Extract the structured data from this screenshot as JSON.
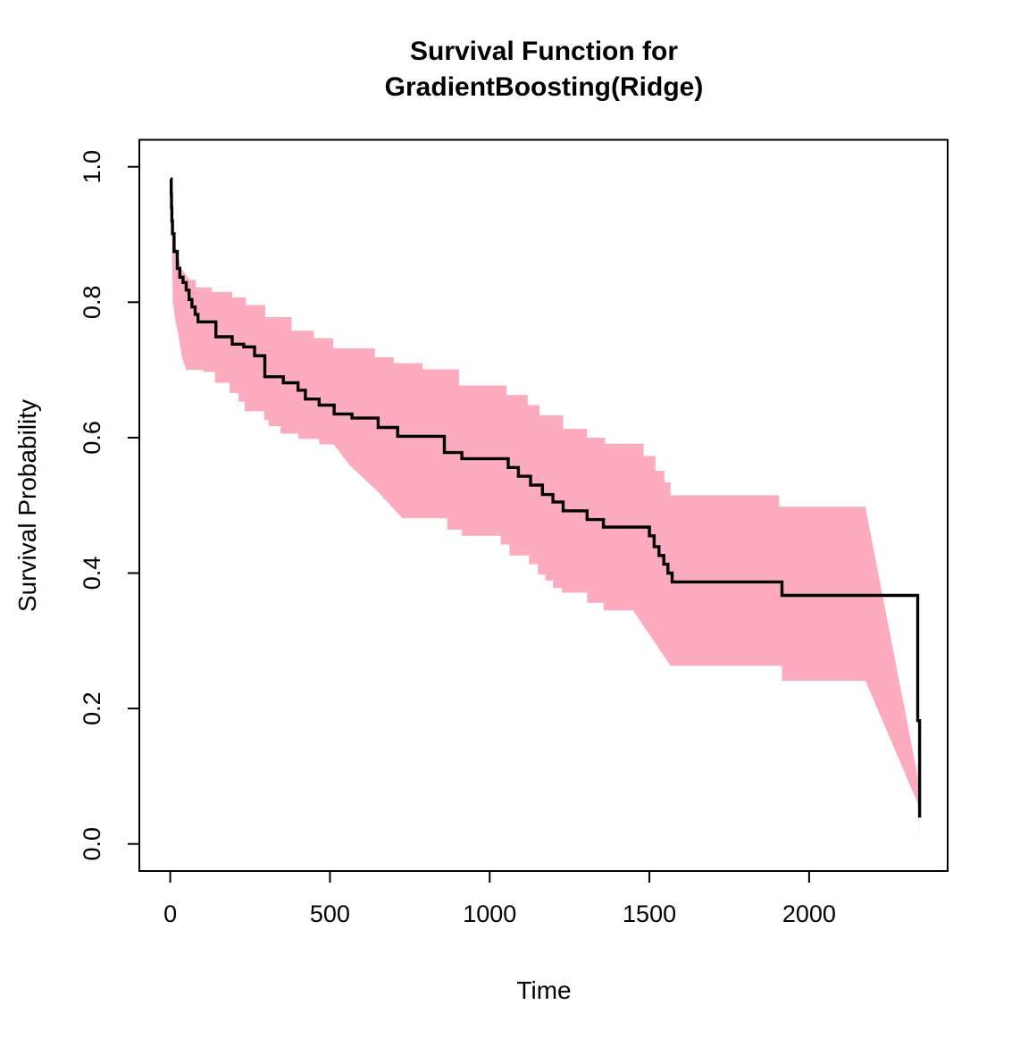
{
  "title": {
    "line1": "Survival Function for",
    "line2": "GradientBoosting(Ridge)"
  },
  "axes": {
    "x_label": "Time",
    "y_label": "Survival Probability",
    "x_tick_labels": [
      "0",
      "500",
      "1000",
      "1500",
      "2000"
    ],
    "x_tick_values": [
      0,
      500,
      1000,
      1500,
      2000
    ],
    "y_tick_labels": [
      "0.0",
      "0.2",
      "0.4",
      "0.6",
      "0.8",
      "1.0"
    ],
    "y_tick_values": [
      0,
      0.2,
      0.4,
      0.6,
      0.8,
      1.0
    ]
  },
  "colors": {
    "curve": "#000000",
    "band": "#FDACC0",
    "axis": "#000000",
    "background": "#FFFFFF"
  },
  "chart_data": {
    "type": "line",
    "subtype": "kaplan-meier-step-with-confidence-band",
    "title": "Survival Function for GradientBoosting(Ridge)",
    "xlabel": "Time",
    "ylabel": "Survival Probability",
    "xlim": [
      0,
      2440
    ],
    "ylim": [
      0.0,
      1.0
    ],
    "grid": false,
    "legend": null,
    "series": [
      {
        "name": "survival_estimate",
        "style": "step-after",
        "color": "#000000",
        "points": [
          [
            1,
            0.982
          ],
          [
            3,
            0.96
          ],
          [
            4,
            0.94
          ],
          [
            5,
            0.92
          ],
          [
            7,
            0.901
          ],
          [
            12,
            0.875
          ],
          [
            22,
            0.85
          ],
          [
            30,
            0.837
          ],
          [
            40,
            0.829
          ],
          [
            50,
            0.818
          ],
          [
            59,
            0.804
          ],
          [
            68,
            0.793
          ],
          [
            78,
            0.782
          ],
          [
            87,
            0.771
          ],
          [
            143,
            0.749
          ],
          [
            194,
            0.738
          ],
          [
            230,
            0.734
          ],
          [
            264,
            0.721
          ],
          [
            296,
            0.69
          ],
          [
            354,
            0.681
          ],
          [
            400,
            0.67
          ],
          [
            423,
            0.657
          ],
          [
            466,
            0.648
          ],
          [
            513,
            0.635
          ],
          [
            569,
            0.629
          ],
          [
            651,
            0.615
          ],
          [
            712,
            0.602
          ],
          [
            858,
            0.578
          ],
          [
            913,
            0.569
          ],
          [
            1058,
            0.556
          ],
          [
            1090,
            0.543
          ],
          [
            1128,
            0.53
          ],
          [
            1165,
            0.516
          ],
          [
            1198,
            0.505
          ],
          [
            1230,
            0.492
          ],
          [
            1305,
            0.479
          ],
          [
            1356,
            0.468
          ],
          [
            1500,
            0.455
          ],
          [
            1515,
            0.439
          ],
          [
            1530,
            0.426
          ],
          [
            1545,
            0.413
          ],
          [
            1558,
            0.4
          ],
          [
            1571,
            0.387
          ],
          [
            1915,
            0.367
          ],
          [
            2340,
            0.182
          ],
          [
            2346,
            0.039
          ]
        ]
      },
      {
        "name": "confidence_band_upper",
        "style": "polyline",
        "color": "#FDACC0",
        "points": [
          [
            5,
            0.9
          ],
          [
            35,
            0.85
          ],
          [
            60,
            0.833
          ],
          [
            80,
            0.833
          ],
          [
            80,
            0.822
          ],
          [
            130,
            0.822
          ],
          [
            130,
            0.815
          ],
          [
            194,
            0.815
          ],
          [
            194,
            0.807
          ],
          [
            236,
            0.807
          ],
          [
            236,
            0.796
          ],
          [
            297,
            0.796
          ],
          [
            297,
            0.778
          ],
          [
            380,
            0.778
          ],
          [
            380,
            0.758
          ],
          [
            450,
            0.758
          ],
          [
            450,
            0.747
          ],
          [
            510,
            0.747
          ],
          [
            510,
            0.732
          ],
          [
            641,
            0.732
          ],
          [
            641,
            0.719
          ],
          [
            700,
            0.719
          ],
          [
            700,
            0.71
          ],
          [
            790,
            0.71
          ],
          [
            790,
            0.701
          ],
          [
            904,
            0.701
          ],
          [
            904,
            0.677
          ],
          [
            1053,
            0.677
          ],
          [
            1053,
            0.663
          ],
          [
            1119,
            0.663
          ],
          [
            1119,
            0.648
          ],
          [
            1156,
            0.648
          ],
          [
            1156,
            0.633
          ],
          [
            1230,
            0.633
          ],
          [
            1230,
            0.613
          ],
          [
            1305,
            0.613
          ],
          [
            1305,
            0.6
          ],
          [
            1361,
            0.6
          ],
          [
            1361,
            0.591
          ],
          [
            1482,
            0.591
          ],
          [
            1482,
            0.573
          ],
          [
            1519,
            0.573
          ],
          [
            1519,
            0.551
          ],
          [
            1547,
            0.551
          ],
          [
            1547,
            0.534
          ],
          [
            1566,
            0.534
          ],
          [
            1566,
            0.515
          ],
          [
            1906,
            0.515
          ],
          [
            1906,
            0.498
          ],
          [
            2176,
            0.498
          ],
          [
            2340,
            0.1
          ],
          [
            2346,
            0.01
          ]
        ]
      },
      {
        "name": "confidence_band_lower",
        "style": "polyline",
        "color": "#FDACC0",
        "points": [
          [
            5,
            0.9
          ],
          [
            8,
            0.8
          ],
          [
            17,
            0.77
          ],
          [
            26,
            0.75
          ],
          [
            36,
            0.72
          ],
          [
            50,
            0.7
          ],
          [
            103,
            0.7
          ],
          [
            103,
            0.697
          ],
          [
            140,
            0.697
          ],
          [
            140,
            0.681
          ],
          [
            186,
            0.681
          ],
          [
            186,
            0.666
          ],
          [
            214,
            0.666
          ],
          [
            214,
            0.653
          ],
          [
            233,
            0.653
          ],
          [
            233,
            0.639
          ],
          [
            294,
            0.639
          ],
          [
            294,
            0.626
          ],
          [
            308,
            0.626
          ],
          [
            308,
            0.617
          ],
          [
            345,
            0.617
          ],
          [
            345,
            0.606
          ],
          [
            401,
            0.606
          ],
          [
            401,
            0.598
          ],
          [
            466,
            0.598
          ],
          [
            466,
            0.59
          ],
          [
            512,
            0.59
          ],
          [
            560,
            0.56
          ],
          [
            650,
            0.52
          ],
          [
            727,
            0.481
          ],
          [
            867,
            0.481
          ],
          [
            867,
            0.464
          ],
          [
            913,
            0.464
          ],
          [
            913,
            0.455
          ],
          [
            1035,
            0.455
          ],
          [
            1035,
            0.442
          ],
          [
            1062,
            0.442
          ],
          [
            1062,
            0.426
          ],
          [
            1123,
            0.426
          ],
          [
            1123,
            0.413
          ],
          [
            1151,
            0.413
          ],
          [
            1151,
            0.398
          ],
          [
            1174,
            0.398
          ],
          [
            1174,
            0.389
          ],
          [
            1198,
            0.389
          ],
          [
            1198,
            0.378
          ],
          [
            1226,
            0.378
          ],
          [
            1226,
            0.371
          ],
          [
            1305,
            0.371
          ],
          [
            1305,
            0.356
          ],
          [
            1356,
            0.356
          ],
          [
            1356,
            0.345
          ],
          [
            1449,
            0.345
          ],
          [
            1566,
            0.263
          ],
          [
            1915,
            0.263
          ],
          [
            1915,
            0.241
          ],
          [
            2176,
            0.241
          ],
          [
            2340,
            0.06
          ],
          [
            2346,
            0.01
          ]
        ]
      }
    ]
  }
}
